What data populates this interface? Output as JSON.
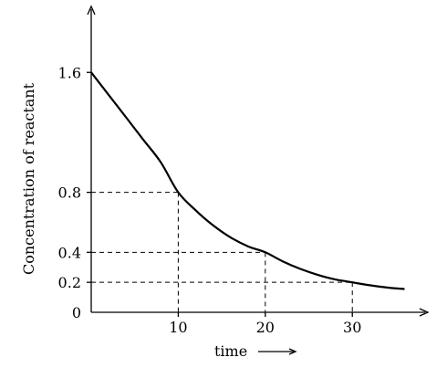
{
  "chart_data": {
    "type": "line",
    "title": "",
    "xlabel": "time",
    "ylabel": "Concentration of reactant",
    "xlim": [
      0,
      37
    ],
    "ylim": [
      0,
      1.9
    ],
    "x_ticks": [
      {
        "value": 10,
        "label": "10"
      },
      {
        "value": 20,
        "label": "20"
      },
      {
        "value": 30,
        "label": "30"
      }
    ],
    "y_ticks": [
      {
        "value": 0,
        "label": "0"
      },
      {
        "value": 0.2,
        "label": "0.2"
      },
      {
        "value": 0.4,
        "label": "0.4"
      },
      {
        "value": 0.8,
        "label": "0.8"
      },
      {
        "value": 1.6,
        "label": "1.6"
      }
    ],
    "series": [
      {
        "name": "",
        "x": [
          0,
          2,
          4,
          6,
          8,
          10,
          12,
          14,
          16,
          18,
          20,
          22,
          24,
          26,
          28,
          30,
          32,
          34,
          36
        ],
        "y": [
          1.6,
          1.45,
          1.3,
          1.15,
          1.0,
          0.8,
          0.68,
          0.58,
          0.5,
          0.44,
          0.4,
          0.34,
          0.29,
          0.25,
          0.22,
          0.2,
          0.18,
          0.165,
          0.155
        ]
      }
    ],
    "guides": [
      {
        "x": 10,
        "y": 0.8
      },
      {
        "x": 20,
        "y": 0.4
      },
      {
        "x": 30,
        "y": 0.2
      }
    ],
    "grid": false,
    "legend": "none"
  }
}
